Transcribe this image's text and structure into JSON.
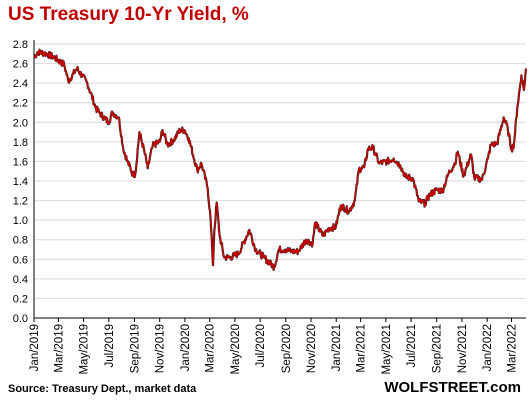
{
  "chart_data": {
    "type": "line",
    "title": "US Treasury 10-Yr Yield, %",
    "xlabel": "",
    "ylabel": "",
    "ylim": [
      0.0,
      2.8
    ],
    "yticks": [
      "0.0",
      "0.2",
      "0.4",
      "0.6",
      "0.8",
      "1.0",
      "1.2",
      "1.4",
      "1.6",
      "1.8",
      "2.0",
      "2.2",
      "2.4",
      "2.6",
      "2.8"
    ],
    "xticks": [
      "Jan/2019",
      "Mar/2019",
      "May/2019",
      "Jul/2019",
      "Sep/2019",
      "Nov/2019",
      "Jan/2020",
      "Mar/2020",
      "May/2020",
      "Jul/2020",
      "Sep/2020",
      "Nov/2020",
      "Jan/2021",
      "Mar/2021",
      "May/2021",
      "Jul/2021",
      "Sep/2021",
      "Nov/2021",
      "Jan/2022",
      "Mar/2022"
    ],
    "grid": "horizontal",
    "series_color": "#cc0000",
    "x": [
      "2019-01-01",
      "2019-01-10",
      "2019-02-01",
      "2019-02-20",
      "2019-03-15",
      "2019-03-25",
      "2019-04-15",
      "2019-05-10",
      "2019-05-31",
      "2019-06-10",
      "2019-06-30",
      "2019-07-10",
      "2019-07-25",
      "2019-08-05",
      "2019-08-15",
      "2019-08-28",
      "2019-09-03",
      "2019-09-13",
      "2019-09-25",
      "2019-10-03",
      "2019-10-15",
      "2019-11-01",
      "2019-11-08",
      "2019-11-20",
      "2019-12-05",
      "2019-12-20",
      "2019-12-31",
      "2020-01-10",
      "2020-01-31",
      "2020-02-10",
      "2020-02-25",
      "2020-03-03",
      "2020-03-09",
      "2020-03-12",
      "2020-03-18",
      "2020-03-25",
      "2020-04-05",
      "2020-04-21",
      "2020-05-10",
      "2020-06-05",
      "2020-06-20",
      "2020-07-10",
      "2020-08-04",
      "2020-08-15",
      "2020-08-31",
      "2020-09-15",
      "2020-10-01",
      "2020-10-20",
      "2020-11-05",
      "2020-11-11",
      "2020-11-30",
      "2020-12-15",
      "2020-12-31",
      "2021-01-12",
      "2021-02-01",
      "2021-02-15",
      "2021-02-25",
      "2021-03-10",
      "2021-03-19",
      "2021-03-31",
      "2021-04-15",
      "2021-05-05",
      "2021-05-20",
      "2021-06-05",
      "2021-06-18",
      "2021-07-05",
      "2021-07-20",
      "2021-08-04",
      "2021-08-15",
      "2021-09-01",
      "2021-09-15",
      "2021-09-30",
      "2021-10-15",
      "2021-10-22",
      "2021-11-05",
      "2021-11-23",
      "2021-12-01",
      "2021-12-20",
      "2022-01-03",
      "2022-01-10",
      "2022-01-25",
      "2022-02-10",
      "2022-02-20",
      "2022-03-01",
      "2022-03-07",
      "2022-03-15",
      "2022-03-25",
      "2022-03-31",
      "2022-04-05"
    ],
    "y": [
      2.66,
      2.72,
      2.7,
      2.66,
      2.59,
      2.42,
      2.55,
      2.4,
      2.14,
      2.09,
      2.0,
      2.1,
      2.05,
      1.73,
      1.6,
      1.47,
      1.47,
      1.9,
      1.7,
      1.53,
      1.76,
      1.8,
      1.92,
      1.77,
      1.82,
      1.92,
      1.92,
      1.84,
      1.51,
      1.58,
      1.33,
      1.02,
      0.54,
      0.88,
      1.18,
      0.84,
      0.62,
      0.62,
      0.66,
      0.9,
      0.7,
      0.62,
      0.52,
      0.7,
      0.7,
      0.68,
      0.68,
      0.8,
      0.76,
      0.97,
      0.84,
      0.92,
      0.93,
      1.15,
      1.09,
      1.2,
      1.52,
      1.54,
      1.73,
      1.74,
      1.58,
      1.6,
      1.63,
      1.56,
      1.44,
      1.43,
      1.19,
      1.17,
      1.26,
      1.31,
      1.3,
      1.48,
      1.58,
      1.7,
      1.45,
      1.67,
      1.43,
      1.42,
      1.63,
      1.77,
      1.78,
      2.05,
      1.93,
      1.72,
      1.78,
      2.15,
      2.48,
      2.33,
      2.55
    ]
  },
  "source": "Source: Treasury Dept., market data",
  "brand": "WOLFSTREET.com"
}
